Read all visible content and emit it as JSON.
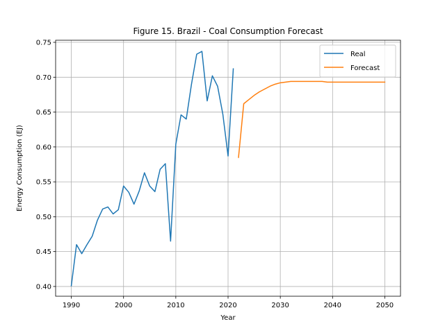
{
  "chart_data": {
    "type": "line",
    "title": "Figure 15. Brazil - Coal Consumption Forecast",
    "xlabel": "Year",
    "ylabel": "Energy Consumption (EJ)",
    "xlim": [
      1987,
      2053
    ],
    "ylim": [
      0.386,
      0.753
    ],
    "xticks": [
      1990,
      2000,
      2010,
      2020,
      2030,
      2040,
      2050
    ],
    "yticks": [
      0.4,
      0.45,
      0.5,
      0.55,
      0.6,
      0.65,
      0.7,
      0.75
    ],
    "grid": true,
    "legend_position": "top-right",
    "series": [
      {
        "name": "Real",
        "color": "#1f77b4",
        "x": [
          1990,
          1991,
          1992,
          1993,
          1994,
          1995,
          1996,
          1997,
          1998,
          1999,
          2000,
          2001,
          2002,
          2003,
          2004,
          2005,
          2006,
          2007,
          2008,
          2009,
          2010,
          2011,
          2012,
          2013,
          2014,
          2015,
          2016,
          2017,
          2018,
          2019,
          2020,
          2021
        ],
        "y": [
          0.401,
          0.46,
          0.447,
          0.46,
          0.472,
          0.495,
          0.511,
          0.514,
          0.504,
          0.51,
          0.544,
          0.535,
          0.518,
          0.537,
          0.563,
          0.544,
          0.536,
          0.568,
          0.576,
          0.465,
          0.604,
          0.646,
          0.64,
          0.69,
          0.733,
          0.737,
          0.666,
          0.702,
          0.687,
          0.647,
          0.587,
          0.712
        ]
      },
      {
        "name": "Forecast",
        "color": "#ff7f0e",
        "x": [
          2022,
          2023,
          2024,
          2025,
          2026,
          2027,
          2028,
          2029,
          2030,
          2031,
          2032,
          2033,
          2034,
          2035,
          2036,
          2037,
          2038,
          2039,
          2040,
          2041,
          2042,
          2043,
          2044,
          2045,
          2046,
          2047,
          2048,
          2049,
          2050
        ],
        "y": [
          0.585,
          0.662,
          0.668,
          0.674,
          0.679,
          0.683,
          0.687,
          0.69,
          0.692,
          0.693,
          0.694,
          0.694,
          0.694,
          0.694,
          0.694,
          0.694,
          0.694,
          0.693,
          0.693,
          0.693,
          0.693,
          0.693,
          0.693,
          0.693,
          0.693,
          0.693,
          0.693,
          0.693,
          0.693
        ]
      }
    ]
  }
}
